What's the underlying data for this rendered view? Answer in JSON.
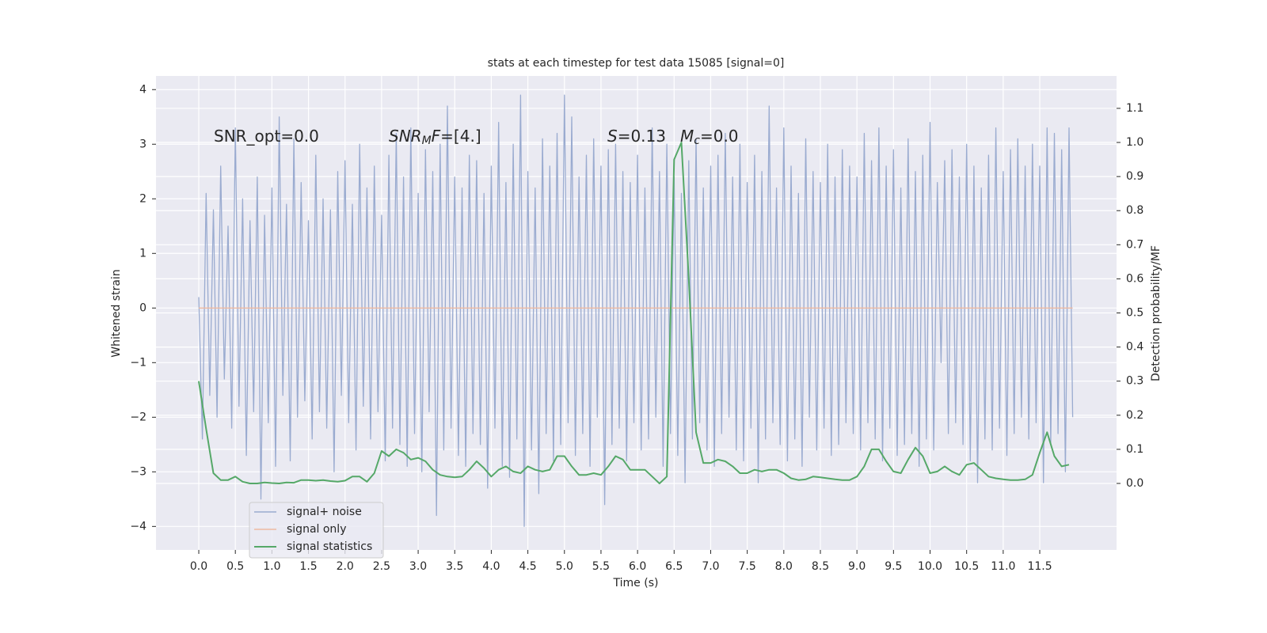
{
  "chart_data": {
    "type": "line",
    "title": "stats at each timestep for test data 15085 [signal=0]",
    "xlabel": "Time (s)",
    "ylabel": "Whitened strain",
    "y2label": "Detection probability/MF",
    "annotations": [
      [
        "SNR_opt=0.0"
      ],
      [
        "SNR",
        "M",
        "F",
        "=[4.]"
      ],
      [
        "S",
        "=0.13"
      ],
      [
        "M",
        "c",
        "=0.0"
      ]
    ],
    "annotation_styles": [
      [
        "normal"
      ],
      [
        "italic",
        "italic-sub",
        "italic",
        "normal"
      ],
      [
        "italic",
        "normal"
      ],
      [
        "italic",
        "italic-sub",
        "normal"
      ]
    ],
    "xlim": [
      -0.585,
      12.55
    ],
    "ylim": [
      -4.43,
      4.25
    ],
    "y2lim": [
      -0.195,
      1.195
    ],
    "xticks": [
      {
        "value": 0,
        "label": "0.0"
      },
      0.5,
      {
        "value": 1,
        "label": "1.0"
      },
      1.5,
      {
        "value": 2,
        "label": "2.0"
      },
      2.5,
      {
        "value": 3,
        "label": "3.0"
      },
      3.5,
      {
        "value": 4,
        "label": "4.0"
      },
      4.5,
      {
        "value": 5,
        "label": "5.0"
      },
      5.5,
      {
        "value": 6,
        "label": "6.0"
      },
      6.5,
      {
        "value": 7,
        "label": "7.0"
      },
      7.5,
      {
        "value": 8,
        "label": "8.0"
      },
      8.5,
      {
        "value": 9,
        "label": "9.0"
      },
      9.5,
      {
        "value": 10,
        "label": "10.0"
      },
      10.5,
      {
        "value": 11,
        "label": "11.0"
      },
      11.5
    ],
    "yticks": [
      {
        "value": -4,
        "label": "−4"
      },
      {
        "value": -3,
        "label": "−3"
      },
      {
        "value": -2,
        "label": "−2"
      },
      {
        "value": -1,
        "label": "−1"
      },
      0,
      1,
      2,
      3,
      4
    ],
    "y2ticks": [
      {
        "value": 0,
        "label": "0.0"
      },
      0.1,
      0.2,
      0.3,
      0.4,
      0.5,
      0.6,
      0.7,
      0.8,
      0.9,
      {
        "value": 1,
        "label": "1.0"
      },
      1.1
    ],
    "grid": true,
    "legend": "lower left",
    "x": [
      0,
      0.05,
      0.1,
      0.15,
      0.2,
      0.25,
      0.3,
      0.35,
      0.4,
      0.45,
      0.5,
      0.55,
      0.6,
      0.65,
      0.7,
      0.75,
      0.8,
      0.85,
      0.9,
      0.95,
      1,
      1.05,
      1.1,
      1.15,
      1.2,
      1.25,
      1.3,
      1.35,
      1.4,
      1.45,
      1.5,
      1.55,
      1.6,
      1.65,
      1.7,
      1.75,
      1.8,
      1.85,
      1.9,
      1.95,
      2,
      2.05,
      2.1,
      2.15,
      2.2,
      2.25,
      2.3,
      2.35,
      2.4,
      2.45,
      2.5,
      2.55,
      2.6,
      2.65,
      2.7,
      2.75,
      2.8,
      2.85,
      2.9,
      2.95,
      3,
      3.05,
      3.1,
      3.15,
      3.2,
      3.25,
      3.3,
      3.35,
      3.4,
      3.45,
      3.5,
      3.55,
      3.6,
      3.65,
      3.7,
      3.75,
      3.8,
      3.85,
      3.9,
      3.95,
      4,
      4.05,
      4.1,
      4.15,
      4.2,
      4.25,
      4.3,
      4.35,
      4.4,
      4.45,
      4.5,
      4.55,
      4.6,
      4.65,
      4.7,
      4.75,
      4.8,
      4.85,
      4.9,
      4.95,
      5,
      5.05,
      5.1,
      5.15,
      5.2,
      5.25,
      5.3,
      5.35,
      5.4,
      5.45,
      5.5,
      5.55,
      5.6,
      5.65,
      5.7,
      5.75,
      5.8,
      5.85,
      5.9,
      5.95,
      6,
      6.05,
      6.1,
      6.15,
      6.2,
      6.25,
      6.3,
      6.35,
      6.4,
      6.45,
      6.5,
      6.55,
      6.6,
      6.65,
      6.7,
      6.75,
      6.8,
      6.85,
      6.9,
      6.95,
      7,
      7.05,
      7.1,
      7.15,
      7.2,
      7.25,
      7.3,
      7.35,
      7.4,
      7.45,
      7.5,
      7.55,
      7.6,
      7.65,
      7.7,
      7.75,
      7.8,
      7.85,
      7.9,
      7.95,
      8,
      8.05,
      8.1,
      8.15,
      8.2,
      8.25,
      8.3,
      8.35,
      8.4,
      8.45,
      8.5,
      8.55,
      8.6,
      8.65,
      8.7,
      8.75,
      8.8,
      8.85,
      8.9,
      8.95,
      9,
      9.05,
      9.1,
      9.15,
      9.2,
      9.25,
      9.3,
      9.35,
      9.4,
      9.45,
      9.5,
      9.55,
      9.6,
      9.65,
      9.7,
      9.75,
      9.8,
      9.85,
      9.9,
      9.95,
      10,
      10.05,
      10.1,
      10.15,
      10.2,
      10.25,
      10.3,
      10.35,
      10.4,
      10.45,
      10.5,
      10.55,
      10.6,
      10.65,
      10.7,
      10.75,
      10.8,
      10.85,
      10.9,
      10.95,
      11,
      11.05,
      11.1,
      11.15,
      11.2,
      11.25,
      11.3,
      11.35,
      11.4,
      11.45,
      11.5,
      11.55,
      11.6,
      11.65,
      11.7,
      11.75,
      11.8,
      11.85,
      11.9,
      11.95
    ],
    "series": [
      {
        "name": "signal+ noise",
        "color": "#9aabd0",
        "values": [
          0.2,
          -2.4,
          2.1,
          -1.6,
          1.8,
          -2.0,
          2.6,
          -1.3,
          1.5,
          -2.2,
          3.3,
          -1.8,
          2.0,
          -2.7,
          1.6,
          -1.9,
          2.4,
          -3.5,
          1.7,
          -2.1,
          2.2,
          -2.9,
          3.5,
          -1.6,
          1.9,
          -2.8,
          3.1,
          -2.0,
          2.3,
          -1.7,
          1.6,
          -2.4,
          2.8,
          -1.9,
          2.0,
          -2.2,
          1.8,
          -3.0,
          2.5,
          -1.6,
          2.7,
          -2.1,
          1.9,
          -2.6,
          3.0,
          -1.8,
          2.2,
          -2.4,
          2.6,
          -1.9,
          1.7,
          -2.8,
          2.8,
          -2.2,
          3.2,
          -2.5,
          2.4,
          -2.9,
          3.3,
          -2.3,
          2.1,
          -3.0,
          2.9,
          -1.9,
          2.5,
          -3.8,
          3.0,
          -2.6,
          3.7,
          -2.2,
          2.4,
          -2.7,
          2.2,
          -2.9,
          2.8,
          -2.3,
          2.7,
          -2.5,
          2.1,
          -3.3,
          2.6,
          -2.2,
          3.4,
          -2.9,
          2.3,
          -3.1,
          3.0,
          -2.4,
          3.9,
          -4.0,
          2.5,
          -2.6,
          2.2,
          -3.4,
          3.1,
          -2.3,
          2.6,
          -2.8,
          3.2,
          -2.5,
          3.9,
          -2.1,
          3.5,
          -2.7,
          2.4,
          -2.3,
          2.8,
          -2.9,
          3.1,
          -2.0,
          2.6,
          -3.6,
          2.9,
          -2.5,
          3.0,
          -2.2,
          2.5,
          -2.8,
          2.3,
          -2.1,
          2.8,
          -2.6,
          2.2,
          -2.4,
          3.3,
          -2.0,
          2.5,
          -2.9,
          3.0,
          -2.3,
          2.4,
          -2.7,
          2.1,
          -3.2,
          2.7,
          -2.4,
          3.1,
          -2.1,
          2.2,
          -2.6,
          2.6,
          -2.9,
          2.8,
          -2.3,
          3.2,
          -2.0,
          2.4,
          -2.6,
          3.0,
          -2.8,
          2.3,
          -2.2,
          2.8,
          -3.2,
          2.5,
          -2.4,
          3.7,
          -2.1,
          2.2,
          -2.5,
          3.3,
          -2.8,
          2.6,
          -2.4,
          2.1,
          -2.9,
          3.1,
          -2.0,
          2.5,
          -2.6,
          2.3,
          -2.2,
          3.0,
          -2.7,
          2.4,
          -2.5,
          2.9,
          -2.1,
          2.6,
          -2.3,
          2.4,
          -2.6,
          3.2,
          -2.1,
          2.7,
          -2.4,
          3.3,
          -2.8,
          2.6,
          -2.2,
          2.9,
          -2.7,
          2.2,
          -2.5,
          3.1,
          -2.3,
          2.5,
          -2.9,
          2.8,
          -2.4,
          3.4,
          -2.6,
          2.3,
          -1.0,
          2.7,
          -2.3,
          2.9,
          -2.1,
          2.4,
          -2.5,
          3.0,
          -2.8,
          2.6,
          -3.2,
          2.2,
          -2.4,
          2.8,
          -2.6,
          3.3,
          -2.2,
          2.5,
          -2.7,
          2.9,
          -2.3,
          3.1,
          -2.0,
          2.6,
          -2.4,
          3.0,
          -2.1,
          2.6,
          -3.2,
          3.3,
          -2.5,
          3.2,
          -2.3,
          2.9,
          -3.0,
          3.3,
          -2.0
        ]
      },
      {
        "name": "signal only",
        "color": "#eeb9a1",
        "values": [
          0,
          0,
          0,
          0,
          0,
          0,
          0,
          0,
          0,
          0,
          0,
          0,
          0,
          0,
          0,
          0,
          0,
          0,
          0,
          0,
          0,
          0,
          0,
          0,
          0,
          0,
          0,
          0,
          0,
          0,
          0,
          0,
          0,
          0,
          0,
          0,
          0,
          0,
          0,
          0,
          0,
          0,
          0,
          0,
          0,
          0,
          0,
          0,
          0,
          0,
          0,
          0,
          0,
          0,
          0,
          0,
          0,
          0,
          0,
          0,
          0,
          0,
          0,
          0,
          0,
          0,
          0,
          0,
          0,
          0,
          0,
          0,
          0,
          0,
          0,
          0,
          0,
          0,
          0,
          0,
          0,
          0,
          0,
          0,
          0,
          0,
          0,
          0,
          0,
          0,
          0,
          0,
          0,
          0,
          0,
          0,
          0,
          0,
          0,
          0,
          0,
          0,
          0,
          0,
          0,
          0,
          0,
          0,
          0,
          0,
          0,
          0,
          0,
          0,
          0,
          0,
          0,
          0,
          0,
          0,
          0,
          0,
          0,
          0,
          0,
          0,
          0,
          0,
          0,
          0,
          0,
          0,
          0,
          0,
          0,
          0,
          0,
          0,
          0,
          0,
          0,
          0,
          0,
          0,
          0,
          0,
          0,
          0,
          0,
          0,
          0,
          0,
          0,
          0,
          0,
          0,
          0,
          0,
          0,
          0,
          0,
          0,
          0,
          0,
          0,
          0,
          0,
          0,
          0,
          0,
          0,
          0,
          0,
          0,
          0,
          0,
          0,
          0,
          0,
          0,
          0,
          0,
          0,
          0,
          0,
          0,
          0,
          0,
          0,
          0,
          0,
          0,
          0,
          0,
          0,
          0,
          0,
          0,
          0,
          0,
          0,
          0,
          0,
          0,
          0,
          0,
          0,
          0,
          0,
          0,
          0,
          0,
          0,
          0,
          0,
          0,
          0,
          0,
          0,
          0,
          0,
          0,
          0,
          0,
          0,
          0,
          0,
          0,
          0,
          0,
          0,
          0,
          0,
          0,
          0,
          0,
          0,
          0,
          0,
          0
        ]
      },
      {
        "name": "signal statistics",
        "color": "#55a868",
        "axis": "y2",
        "x": [
          0,
          0.1,
          0.2,
          0.3,
          0.4,
          0.5,
          0.6,
          0.7,
          0.8,
          0.9,
          1,
          1.1,
          1.2,
          1.3,
          1.4,
          1.5,
          1.6,
          1.7,
          1.8,
          1.9,
          2,
          2.1,
          2.2,
          2.3,
          2.4,
          2.5,
          2.6,
          2.7,
          2.8,
          2.9,
          3,
          3.1,
          3.2,
          3.3,
          3.4,
          3.5,
          3.6,
          3.7,
          3.8,
          3.9,
          4,
          4.1,
          4.2,
          4.3,
          4.4,
          4.5,
          4.6,
          4.7,
          4.8,
          4.9,
          5,
          5.1,
          5.2,
          5.3,
          5.4,
          5.5,
          5.6,
          5.7,
          5.8,
          5.9,
          6,
          6.1,
          6.2,
          6.3,
          6.4,
          6.5,
          6.6,
          6.7,
          6.8,
          6.9,
          7,
          7.1,
          7.2,
          7.3,
          7.4,
          7.5,
          7.6,
          7.7,
          7.8,
          7.9,
          8,
          8.1,
          8.2,
          8.3,
          8.4,
          8.5,
          8.6,
          8.7,
          8.8,
          8.9,
          9,
          9.1,
          9.2,
          9.3,
          9.4,
          9.5,
          9.6,
          9.7,
          9.8,
          9.9,
          10,
          10.1,
          10.2,
          10.3,
          10.4,
          10.5,
          10.6,
          10.7,
          10.8,
          10.9,
          11,
          11.1,
          11.2,
          11.3,
          11.4,
          11.5,
          11.6,
          11.7,
          11.8,
          11.9
        ],
        "values": [
          0.3,
          0.16,
          0.03,
          0.01,
          0.01,
          0.02,
          0.005,
          0,
          0,
          0.003,
          0.001,
          0,
          0.003,
          0.002,
          0.01,
          0.01,
          0.008,
          0.01,
          0.007,
          0.005,
          0.008,
          0.02,
          0.02,
          0.005,
          0.03,
          0.095,
          0.08,
          0.1,
          0.09,
          0.07,
          0.075,
          0.065,
          0.04,
          0.025,
          0.02,
          0.018,
          0.02,
          0.04,
          0.065,
          0.045,
          0.02,
          0.04,
          0.05,
          0.035,
          0.03,
          0.05,
          0.04,
          0.035,
          0.04,
          0.08,
          0.08,
          0.05,
          0.025,
          0.025,
          0.03,
          0.025,
          0.05,
          0.08,
          0.07,
          0.04,
          0.04,
          0.04,
          0.02,
          0,
          0.02,
          0.95,
          1.0,
          0.6,
          0.15,
          0.06,
          0.06,
          0.07,
          0.065,
          0.05,
          0.03,
          0.03,
          0.04,
          0.035,
          0.04,
          0.04,
          0.03,
          0.015,
          0.01,
          0.012,
          0.02,
          0.018,
          0.015,
          0.012,
          0.01,
          0.01,
          0.02,
          0.05,
          0.1,
          0.1,
          0.065,
          0.035,
          0.03,
          0.07,
          0.105,
          0.08,
          0.03,
          0.035,
          0.05,
          0.035,
          0.025,
          0.055,
          0.06,
          0.04,
          0.02,
          0.015,
          0.012,
          0.01,
          0.01,
          0.012,
          0.025,
          0.09,
          0.15,
          0.08,
          0.05,
          0.055
        ]
      }
    ]
  }
}
